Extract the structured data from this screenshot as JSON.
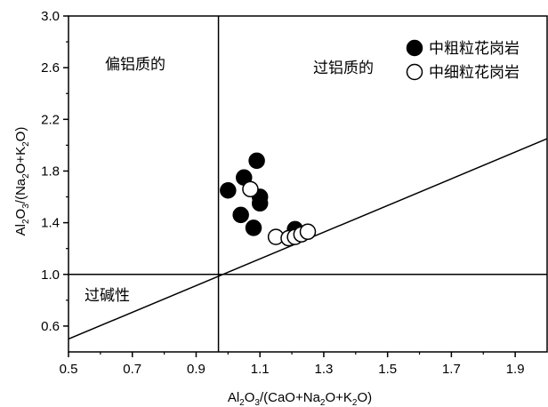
{
  "chart_data": {
    "type": "scatter",
    "xlabel": "Al2O3/(CaO+Na2O+K2O)",
    "ylabel": "Al2O3/(Na2O+K2O)",
    "xlim": [
      0.5,
      2.0
    ],
    "ylim": [
      0.4,
      3.0
    ],
    "x_ticks": [
      "0.5",
      "0.7",
      "0.9",
      "1.1",
      "1.3",
      "1.5",
      "1.7",
      "1.9"
    ],
    "y_ticks": [
      "0.6",
      "1.0",
      "1.4",
      "1.8",
      "2.2",
      "2.6",
      "3.0"
    ],
    "regions": {
      "metaluminous": "偏铝质的",
      "peraluminous": "过铝质的",
      "peralkaline": "过碱性"
    },
    "reference_lines": {
      "vertical_x": 0.97,
      "horizontal_y": 1.0,
      "diagonal": [
        [
          0.5,
          0.5
        ],
        [
          2.0,
          2.05
        ]
      ]
    },
    "legend_position": "top-right",
    "series": [
      {
        "name": "中粗粒花岗岩",
        "marker": "filled-circle",
        "color": "#000000",
        "points": [
          [
            1.0,
            1.65
          ],
          [
            1.05,
            1.75
          ],
          [
            1.09,
            1.88
          ],
          [
            1.1,
            1.6
          ],
          [
            1.1,
            1.55
          ],
          [
            1.04,
            1.46
          ],
          [
            1.08,
            1.36
          ],
          [
            1.21,
            1.35
          ]
        ]
      },
      {
        "name": "中细粒花岗岩",
        "marker": "open-circle",
        "color": "#000000",
        "points": [
          [
            1.07,
            1.66
          ],
          [
            1.15,
            1.29
          ],
          [
            1.19,
            1.28
          ],
          [
            1.21,
            1.29
          ],
          [
            1.23,
            1.31
          ],
          [
            1.25,
            1.33
          ]
        ]
      }
    ]
  }
}
